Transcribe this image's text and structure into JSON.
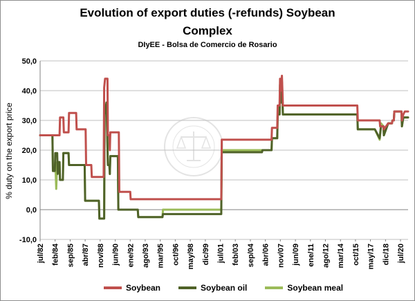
{
  "chart_data": {
    "type": "line",
    "title": "Evolution of export duties (-refunds) Soybean",
    "title_line2": "Complex",
    "subtitle": "DIyEE - Bolsa de Comercio de Rosario",
    "ylabel": "% duty on the export price",
    "xlabel": "",
    "ylim": [
      -10,
      50
    ],
    "yticks": [
      "-10,0",
      "0,0",
      "10,0",
      "20,0",
      "30,0",
      "40,0",
      "50,0"
    ],
    "xlim": [
      1982.5,
      2021.3
    ],
    "xticks": [
      {
        "label": "jul/82",
        "t": 1982.5
      },
      {
        "label": "feb/84",
        "t": 1984.08
      },
      {
        "label": "sep/85",
        "t": 1985.67
      },
      {
        "label": "abr/87",
        "t": 1987.25
      },
      {
        "label": "nov/88",
        "t": 1988.83
      },
      {
        "label": "jun/90",
        "t": 1990.42
      },
      {
        "label": "ene/92",
        "t": 1992.0
      },
      {
        "label": "ago/93",
        "t": 1993.58
      },
      {
        "label": "mar/95",
        "t": 1995.17
      },
      {
        "label": "oct/96",
        "t": 1996.75
      },
      {
        "label": "may/98",
        "t": 1998.33
      },
      {
        "label": "dic/99",
        "t": 1999.92
      },
      {
        "label": "jul/01",
        "t": 2001.5
      },
      {
        "label": "feb/03",
        "t": 2003.08
      },
      {
        "label": "sep/04",
        "t": 2004.67
      },
      {
        "label": "abr/06",
        "t": 2006.25
      },
      {
        "label": "nov/07",
        "t": 2007.83
      },
      {
        "label": "jun/09",
        "t": 2009.42
      },
      {
        "label": "ene/11",
        "t": 2011.0
      },
      {
        "label": "ago/12",
        "t": 2012.58
      },
      {
        "label": "mar/14",
        "t": 2014.17
      },
      {
        "label": "oct/15",
        "t": 2015.75
      },
      {
        "label": "may/17",
        "t": 2017.33
      },
      {
        "label": "dic/18",
        "t": 2018.92
      },
      {
        "label": "jul/20",
        "t": 2020.5
      }
    ],
    "grid": true,
    "legend_position": "bottom",
    "series": [
      {
        "name": "Soybean",
        "color": "#c0504d",
        "points": [
          [
            1982.5,
            25
          ],
          [
            1984.0,
            25
          ],
          [
            1984.55,
            25
          ],
          [
            1984.6,
            31
          ],
          [
            1984.95,
            31
          ],
          [
            1985.0,
            26
          ],
          [
            1985.5,
            26
          ],
          [
            1985.55,
            32.5
          ],
          [
            1986.3,
            32.5
          ],
          [
            1986.35,
            27
          ],
          [
            1987.3,
            27
          ],
          [
            1987.35,
            15
          ],
          [
            1987.9,
            15
          ],
          [
            1987.95,
            11
          ],
          [
            1989.2,
            11
          ],
          [
            1989.25,
            41
          ],
          [
            1989.35,
            44
          ],
          [
            1989.6,
            44
          ],
          [
            1989.65,
            25
          ],
          [
            1989.8,
            25
          ],
          [
            1989.85,
            20
          ],
          [
            1989.9,
            26
          ],
          [
            1990.8,
            26
          ],
          [
            1990.85,
            6
          ],
          [
            1992.0,
            6
          ],
          [
            1992.05,
            3.5
          ],
          [
            2001.6,
            3.5
          ],
          [
            2001.65,
            23.5
          ],
          [
            2006.9,
            23.5
          ],
          [
            2006.95,
            27.5
          ],
          [
            2007.5,
            27.5
          ],
          [
            2007.55,
            35
          ],
          [
            2007.75,
            35
          ],
          [
            2007.8,
            44
          ],
          [
            2007.9,
            40
          ],
          [
            2008.0,
            45
          ],
          [
            2008.1,
            35
          ],
          [
            2015.95,
            35
          ],
          [
            2016.0,
            30
          ],
          [
            2018.3,
            30
          ],
          [
            2018.35,
            28
          ],
          [
            2018.7,
            28
          ],
          [
            2018.75,
            27
          ],
          [
            2019.2,
            29
          ],
          [
            2019.6,
            29
          ],
          [
            2019.65,
            30
          ],
          [
            2019.8,
            30
          ],
          [
            2019.85,
            33
          ],
          [
            2020.6,
            33
          ],
          [
            2020.65,
            30
          ],
          [
            2020.8,
            32
          ],
          [
            2020.95,
            33
          ],
          [
            2021.3,
            33
          ]
        ]
      },
      {
        "name": "Soybean oil",
        "color": "#4f6228",
        "points": [
          [
            1982.5,
            25
          ],
          [
            1983.8,
            25
          ],
          [
            1983.85,
            13
          ],
          [
            1984.05,
            13
          ],
          [
            1984.1,
            19
          ],
          [
            1984.3,
            19
          ],
          [
            1984.35,
            12
          ],
          [
            1984.45,
            16
          ],
          [
            1984.55,
            16
          ],
          [
            1984.6,
            10
          ],
          [
            1984.9,
            10
          ],
          [
            1984.95,
            19
          ],
          [
            1985.5,
            19
          ],
          [
            1985.55,
            15
          ],
          [
            1987.2,
            15
          ],
          [
            1987.25,
            3
          ],
          [
            1988.7,
            3
          ],
          [
            1988.75,
            -3
          ],
          [
            1989.25,
            -3
          ],
          [
            1989.3,
            32
          ],
          [
            1989.5,
            36
          ],
          [
            1989.65,
            15
          ],
          [
            1989.8,
            15
          ],
          [
            1989.85,
            12
          ],
          [
            1989.9,
            18
          ],
          [
            1990.7,
            18
          ],
          [
            1990.75,
            0
          ],
          [
            1992.8,
            0
          ],
          [
            1992.85,
            -2.5
          ],
          [
            1995.4,
            -2.5
          ],
          [
            1995.45,
            -1.5
          ],
          [
            2001.6,
            -1.5
          ],
          [
            2001.65,
            19.3
          ],
          [
            2005.9,
            19.3
          ],
          [
            2005.95,
            20
          ],
          [
            2006.9,
            20
          ],
          [
            2006.95,
            24
          ],
          [
            2007.5,
            24
          ],
          [
            2007.55,
            32
          ],
          [
            2007.75,
            32
          ],
          [
            2007.8,
            42
          ],
          [
            2007.9,
            36
          ],
          [
            2008.0,
            43
          ],
          [
            2008.1,
            32
          ],
          [
            2015.95,
            32
          ],
          [
            2016.0,
            27
          ],
          [
            2017.8,
            27
          ],
          [
            2018.3,
            24
          ],
          [
            2018.45,
            28
          ],
          [
            2018.7,
            28
          ],
          [
            2018.75,
            25
          ],
          [
            2019.2,
            29
          ],
          [
            2019.6,
            29
          ],
          [
            2019.65,
            30
          ],
          [
            2019.8,
            30
          ],
          [
            2019.85,
            33
          ],
          [
            2020.6,
            33
          ],
          [
            2020.65,
            28
          ],
          [
            2020.8,
            31
          ],
          [
            2021.3,
            31
          ]
        ]
      },
      {
        "name": "Soybean meal",
        "color": "#9bbb59",
        "points": [
          [
            1982.5,
            25
          ],
          [
            1983.8,
            25
          ],
          [
            1983.85,
            13
          ],
          [
            1984.05,
            13
          ],
          [
            1984.1,
            16
          ],
          [
            1984.2,
            7
          ],
          [
            1984.3,
            16
          ],
          [
            1984.55,
            16
          ],
          [
            1984.6,
            10
          ],
          [
            1984.9,
            10
          ],
          [
            1984.95,
            19
          ],
          [
            1985.5,
            19
          ],
          [
            1985.55,
            15
          ],
          [
            1987.2,
            15
          ],
          [
            1987.25,
            3
          ],
          [
            1988.7,
            3
          ],
          [
            1988.75,
            -3
          ],
          [
            1989.25,
            -3
          ],
          [
            1989.3,
            32
          ],
          [
            1989.5,
            36
          ],
          [
            1989.65,
            15
          ],
          [
            1989.8,
            15
          ],
          [
            1989.85,
            12
          ],
          [
            1989.9,
            18
          ],
          [
            1990.7,
            18
          ],
          [
            1990.75,
            0
          ],
          [
            1992.8,
            0
          ],
          [
            1992.85,
            -2.5
          ],
          [
            1995.4,
            -2.5
          ],
          [
            1995.45,
            0
          ],
          [
            2001.6,
            0
          ],
          [
            2001.65,
            20
          ],
          [
            2006.9,
            20
          ],
          [
            2006.95,
            24
          ],
          [
            2007.5,
            24
          ],
          [
            2007.55,
            32
          ],
          [
            2007.75,
            32
          ],
          [
            2007.8,
            42
          ],
          [
            2007.9,
            36
          ],
          [
            2008.0,
            43
          ],
          [
            2008.1,
            32
          ],
          [
            2015.95,
            32
          ],
          [
            2016.0,
            27
          ],
          [
            2017.8,
            27
          ],
          [
            2018.3,
            23.5
          ],
          [
            2018.45,
            29
          ],
          [
            2018.7,
            28
          ],
          [
            2018.75,
            25
          ],
          [
            2019.2,
            29
          ],
          [
            2019.6,
            29
          ],
          [
            2019.65,
            30
          ],
          [
            2019.8,
            30
          ],
          [
            2019.85,
            33
          ],
          [
            2020.6,
            33
          ],
          [
            2020.65,
            28
          ],
          [
            2020.8,
            31
          ],
          [
            2021.3,
            31
          ]
        ]
      }
    ]
  }
}
